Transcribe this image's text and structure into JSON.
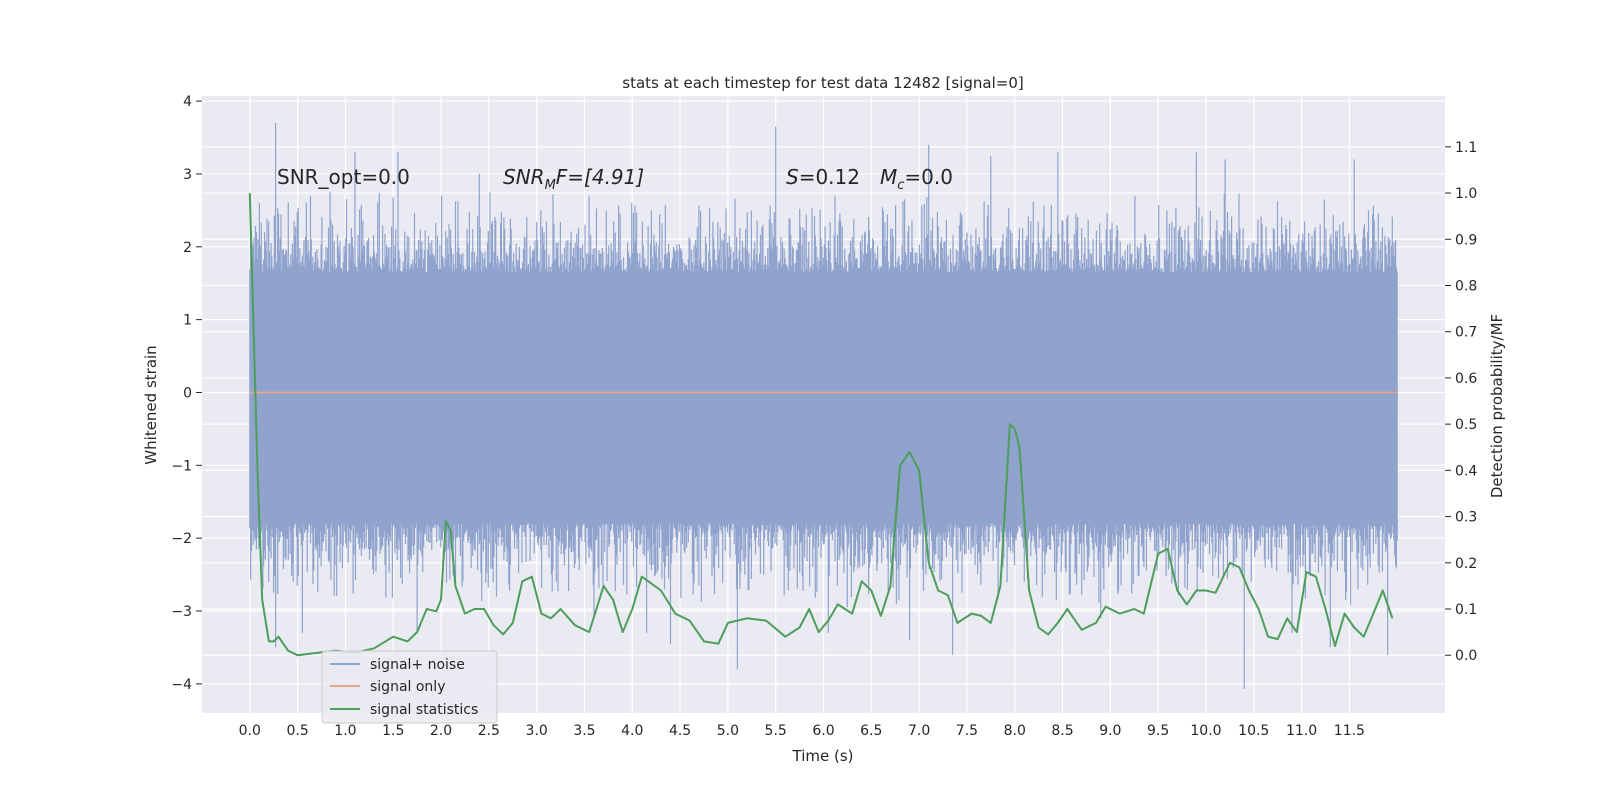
{
  "chart_data": {
    "type": "line",
    "title": "stats at each timestep for test data 12482 [signal=0]",
    "xlabel": "Time (s)",
    "ylabel": "Whitened strain",
    "y2label": "Detection probability/MF",
    "xlim": [
      -0.5,
      12.5
    ],
    "ylim": [
      -4.4,
      4.07
    ],
    "y2lim": [
      -0.125,
      1.21
    ],
    "xticks": [
      0.0,
      0.5,
      1.0,
      1.5,
      2.0,
      2.5,
      3.0,
      3.5,
      4.0,
      4.5,
      5.0,
      5.5,
      6.0,
      6.5,
      7.0,
      7.5,
      8.0,
      8.5,
      9.0,
      9.5,
      10.0,
      10.5,
      11.0,
      11.5
    ],
    "xtick_labels": [
      "0.0",
      "0.5",
      "1.0",
      "1.5",
      "2.0",
      "2.5",
      "3.0",
      "3.5",
      "4.0",
      "4.5",
      "5.0",
      "5.5",
      "6.0",
      "6.5",
      "7.0",
      "7.5",
      "8.0",
      "8.5",
      "9.0",
      "9.5",
      "10.0",
      "10.5",
      "11.0",
      "11.5"
    ],
    "yticks": [
      -4,
      -3,
      -2,
      -1,
      0,
      1,
      2,
      3,
      4
    ],
    "ytick_labels": [
      "−4",
      "−3",
      "−2",
      "−1",
      "0",
      "1",
      "2",
      "3",
      "4"
    ],
    "y2ticks": [
      0.0,
      0.1,
      0.2,
      0.3,
      0.4,
      0.5,
      0.6,
      0.7,
      0.8,
      0.9,
      1.0,
      1.1
    ],
    "y2tick_labels": [
      "0.0",
      "0.1",
      "0.2",
      "0.3",
      "0.4",
      "0.5",
      "0.6",
      "0.7",
      "0.8",
      "0.9",
      "1.0",
      "1.1"
    ],
    "grid": true,
    "legend_position": "lower-left",
    "annotations": {
      "snr_opt": "SNR_opt=0.0",
      "snr_mf_base": "SNR",
      "snr_mf_sub": "M",
      "snr_mf_rest": "F=[4.91]",
      "s_label": "S",
      "s_value": "=0.12",
      "mc_base": "M",
      "mc_sub": "c",
      "mc_value": "=0.0"
    },
    "series": [
      {
        "name": "signal+ noise",
        "color": "#8fa3cd",
        "kind": "noise",
        "t_range": [
          0.0,
          12.0
        ],
        "envelope": [
          -1.8,
          1.65
        ],
        "peaks": [
          {
            "t": 0.27,
            "v": 3.7
          },
          {
            "t": 0.27,
            "v": -3.5
          },
          {
            "t": 0.1,
            "v": 2.6
          },
          {
            "t": 0.55,
            "v": -3.3
          },
          {
            "t": 1.1,
            "v": 3.3
          },
          {
            "t": 1.55,
            "v": 3.3
          },
          {
            "t": 1.75,
            "v": -3.3
          },
          {
            "t": 2.4,
            "v": 3.0
          },
          {
            "t": 3.6,
            "v": -3.1
          },
          {
            "t": 4.15,
            "v": -3.3
          },
          {
            "t": 4.4,
            "v": -3.45
          },
          {
            "t": 5.1,
            "v": -3.8
          },
          {
            "t": 5.5,
            "v": 3.65
          },
          {
            "t": 6.05,
            "v": -3.3
          },
          {
            "t": 6.9,
            "v": -3.4
          },
          {
            "t": 7.1,
            "v": 3.4
          },
          {
            "t": 7.35,
            "v": -3.6
          },
          {
            "t": 7.75,
            "v": 3.25
          },
          {
            "t": 8.45,
            "v": 3.3
          },
          {
            "t": 8.9,
            "v": -3.1
          },
          {
            "t": 9.9,
            "v": 3.3
          },
          {
            "t": 10.2,
            "v": 3.2
          },
          {
            "t": 10.4,
            "v": -4.07
          },
          {
            "t": 10.9,
            "v": -3.3
          },
          {
            "t": 11.3,
            "v": -3.5
          },
          {
            "t": 11.9,
            "v": -3.6
          },
          {
            "t": 11.55,
            "v": 3.2
          }
        ]
      },
      {
        "name": "signal only",
        "color": "#e8a48a",
        "kind": "line",
        "x": [
          0.0,
          12.0
        ],
        "y": [
          0.0,
          0.0
        ]
      },
      {
        "name": "signal statistics",
        "color": "#4c9e5a",
        "kind": "line",
        "axis": "right",
        "x": [
          0.0,
          0.08,
          0.13,
          0.2,
          0.25,
          0.3,
          0.4,
          0.5,
          0.7,
          0.9,
          1.1,
          1.3,
          1.5,
          1.65,
          1.75,
          1.85,
          1.95,
          2.0,
          2.05,
          2.1,
          2.15,
          2.25,
          2.35,
          2.45,
          2.55,
          2.65,
          2.75,
          2.85,
          2.95,
          3.05,
          3.15,
          3.25,
          3.4,
          3.55,
          3.7,
          3.8,
          3.9,
          4.0,
          4.1,
          4.2,
          4.3,
          4.45,
          4.6,
          4.75,
          4.9,
          5.0,
          5.2,
          5.4,
          5.6,
          5.75,
          5.85,
          5.95,
          6.05,
          6.15,
          6.3,
          6.4,
          6.5,
          6.6,
          6.7,
          6.8,
          6.9,
          7.0,
          7.1,
          7.2,
          7.3,
          7.4,
          7.55,
          7.65,
          7.75,
          7.85,
          7.95,
          8.0,
          8.05,
          8.15,
          8.25,
          8.35,
          8.45,
          8.55,
          8.7,
          8.85,
          8.95,
          9.1,
          9.25,
          9.35,
          9.5,
          9.6,
          9.7,
          9.8,
          9.9,
          10.0,
          10.1,
          10.25,
          10.35,
          10.45,
          10.55,
          10.65,
          10.75,
          10.85,
          10.95,
          11.05,
          11.15,
          11.25,
          11.35,
          11.45,
          11.55,
          11.65,
          11.75,
          11.85,
          11.95
        ],
        "y": [
          1.0,
          0.4,
          0.12,
          0.03,
          0.03,
          0.04,
          0.01,
          0.0,
          0.005,
          0.01,
          0.005,
          0.015,
          0.04,
          0.03,
          0.05,
          0.1,
          0.095,
          0.12,
          0.29,
          0.27,
          0.15,
          0.09,
          0.1,
          0.1,
          0.065,
          0.045,
          0.07,
          0.16,
          0.17,
          0.09,
          0.08,
          0.1,
          0.065,
          0.05,
          0.15,
          0.12,
          0.05,
          0.1,
          0.17,
          0.155,
          0.14,
          0.09,
          0.075,
          0.03,
          0.025,
          0.07,
          0.08,
          0.075,
          0.04,
          0.06,
          0.1,
          0.05,
          0.075,
          0.11,
          0.09,
          0.16,
          0.14,
          0.085,
          0.15,
          0.41,
          0.44,
          0.4,
          0.2,
          0.14,
          0.13,
          0.07,
          0.09,
          0.085,
          0.07,
          0.15,
          0.5,
          0.49,
          0.45,
          0.14,
          0.06,
          0.045,
          0.07,
          0.1,
          0.055,
          0.07,
          0.105,
          0.09,
          0.1,
          0.09,
          0.22,
          0.23,
          0.14,
          0.11,
          0.14,
          0.14,
          0.135,
          0.2,
          0.19,
          0.14,
          0.1,
          0.04,
          0.035,
          0.08,
          0.05,
          0.18,
          0.17,
          0.1,
          0.02,
          0.09,
          0.06,
          0.04,
          0.09,
          0.14,
          0.08
        ]
      }
    ]
  }
}
